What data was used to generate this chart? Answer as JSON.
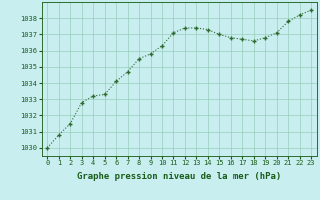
{
  "x": [
    0,
    1,
    2,
    3,
    4,
    5,
    6,
    7,
    8,
    9,
    10,
    11,
    12,
    13,
    14,
    15,
    16,
    17,
    18,
    19,
    20,
    21,
    22,
    23
  ],
  "y": [
    1030.0,
    1030.8,
    1031.5,
    1032.8,
    1033.2,
    1033.3,
    1034.1,
    1034.7,
    1035.5,
    1035.8,
    1036.3,
    1037.1,
    1037.4,
    1037.4,
    1037.3,
    1037.0,
    1036.8,
    1036.7,
    1036.6,
    1036.8,
    1037.1,
    1037.8,
    1038.2,
    1038.5
  ],
  "line_color": "#2d6a2d",
  "marker_color": "#2d6a2d",
  "bg_color": "#c8eef0",
  "grid_color": "#99ccbb",
  "xlabel": "Graphe pression niveau de la mer (hPa)",
  "xlabel_color": "#1a5c1a",
  "ylim": [
    1029.5,
    1039.0
  ],
  "yticks": [
    1030,
    1031,
    1032,
    1033,
    1034,
    1035,
    1036,
    1037,
    1038
  ],
  "xticks": [
    0,
    1,
    2,
    3,
    4,
    5,
    6,
    7,
    8,
    9,
    10,
    11,
    12,
    13,
    14,
    15,
    16,
    17,
    18,
    19,
    20,
    21,
    22,
    23
  ],
  "tick_color": "#1a5c1a",
  "spine_color": "#2d6a2d",
  "tick_fontsize": 5.0,
  "xlabel_fontsize": 6.5
}
